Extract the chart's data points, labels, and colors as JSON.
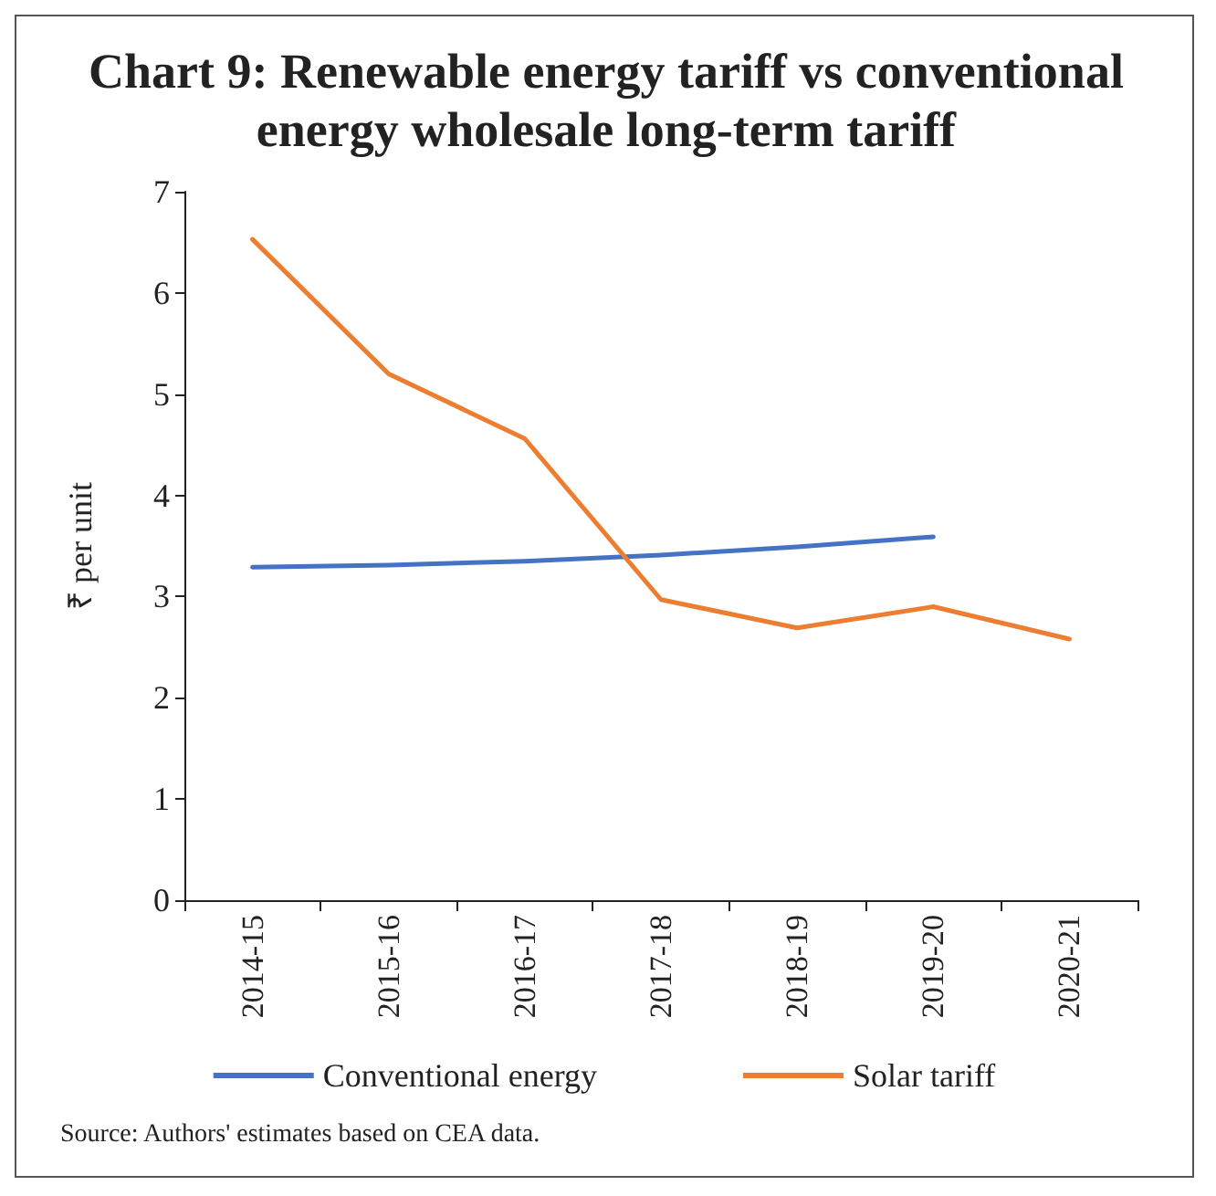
{
  "chart_data": {
    "type": "line",
    "title": "Chart 9: Renewable energy tariff vs conventional energy wholesale long-term tariff",
    "ylabel": "₹ per unit",
    "categories": [
      "2014-15",
      "2015-16",
      "2016-17",
      "2017-18",
      "2018-19",
      "2019-20",
      "2020-21"
    ],
    "series": [
      {
        "name": "Conventional energy",
        "color": "#4472c4",
        "values": [
          3.29,
          3.31,
          3.35,
          3.41,
          3.49,
          3.59,
          null
        ]
      },
      {
        "name": "Solar tariff",
        "color": "#ed7d31",
        "values": [
          6.53,
          5.2,
          4.56,
          2.97,
          2.69,
          2.9,
          2.58
        ]
      }
    ],
    "ylim": [
      0,
      7
    ],
    "yticks": [
      0,
      1,
      2,
      3,
      4,
      5,
      6,
      7
    ],
    "grid": false,
    "legend": "bottom",
    "marker": "none",
    "line_style": "solid",
    "annotations": [
      "Source: Authors' estimates based on CEA data."
    ]
  }
}
